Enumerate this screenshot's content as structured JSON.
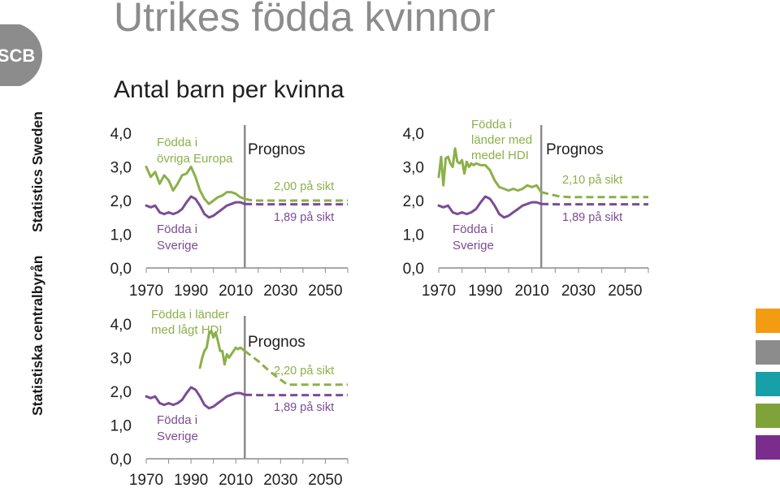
{
  "title": "Utrikes födda kvinnor",
  "subtitle": "Antal barn per kvinna",
  "organization": {
    "name_sv": "Statistiska centralbyrån",
    "name_en": "Statistics Sweden",
    "logo_text": "SCB"
  },
  "colors": {
    "green": "#8cb04a",
    "purple": "#7b4c95",
    "grey": "#8c8c8c",
    "swatches": [
      "#f39c12",
      "#8c8c8c",
      "#18a0a8",
      "#7fa33a",
      "#7b2d8e"
    ]
  },
  "chart_data": [
    {
      "id": "europa",
      "type": "line",
      "xlim": [
        1970,
        2060
      ],
      "ylim": [
        0,
        4
      ],
      "xticks": [
        "1970",
        "1990",
        "2010",
        "2030",
        "2050"
      ],
      "yticks": [
        "0,0",
        "1,0",
        "2,0",
        "3,0",
        "4,0"
      ],
      "forecast_start": 2014,
      "forecast_label": "Prognos",
      "series": [
        {
          "name": "Födda i övriga Europa",
          "color": "#8cb04a",
          "value_label": "2,00 på sikt",
          "x": [
            1970,
            1972,
            1974,
            1976,
            1978,
            1980,
            1982,
            1984,
            1986,
            1988,
            1990,
            1992,
            1994,
            1996,
            1998,
            2000,
            2002,
            2004,
            2006,
            2008,
            2010,
            2012,
            2014
          ],
          "y": [
            3.0,
            2.7,
            2.85,
            2.5,
            2.75,
            2.6,
            2.3,
            2.5,
            2.75,
            2.8,
            3.0,
            2.7,
            2.3,
            2.05,
            1.9,
            2.0,
            2.1,
            2.15,
            2.25,
            2.25,
            2.2,
            2.1,
            2.05
          ],
          "forecast_x": [
            2014,
            2016,
            2018,
            2020,
            2060
          ],
          "forecast_y": [
            2.05,
            2.02,
            2.0,
            2.0,
            2.0
          ]
        },
        {
          "name": "Födda i Sverige",
          "color": "#7b4c95",
          "value_label": "1,89 på sikt",
          "x": [
            1970,
            1972,
            1974,
            1976,
            1978,
            1980,
            1982,
            1984,
            1986,
            1988,
            1990,
            1992,
            1994,
            1996,
            1998,
            2000,
            2002,
            2004,
            2006,
            2008,
            2010,
            2012,
            2014
          ],
          "y": [
            1.85,
            1.8,
            1.85,
            1.65,
            1.6,
            1.65,
            1.6,
            1.65,
            1.75,
            1.95,
            2.12,
            2.05,
            1.85,
            1.6,
            1.5,
            1.55,
            1.65,
            1.75,
            1.85,
            1.9,
            1.95,
            1.95,
            1.9
          ],
          "forecast_x": [
            2014,
            2020,
            2060
          ],
          "forecast_y": [
            1.9,
            1.89,
            1.89
          ]
        }
      ],
      "annotations": [
        "Födda i",
        "övriga Europa",
        "Födda i",
        "Sverige"
      ]
    },
    {
      "id": "hogt",
      "type": "line",
      "xlim": [
        1970,
        2060
      ],
      "ylim": [
        0,
        4
      ],
      "xticks": [
        "1970",
        "1990",
        "2010",
        "2030",
        "2050"
      ],
      "yticks": [
        "0,0",
        "1,0",
        "2,0",
        "3,0",
        "4,0"
      ],
      "forecast_start": 2014,
      "forecast_label": "Prognos",
      "series": [
        {
          "name": "Födda i länder med medel HDI",
          "color": "#8cb04a",
          "value_label": "2,10 på sikt",
          "x": [
            1970,
            1971,
            1972,
            1973,
            1974,
            1975,
            1976,
            1977,
            1978,
            1979,
            1980,
            1981,
            1982,
            1983,
            1984,
            1985,
            1986,
            1988,
            1990,
            1992,
            1994,
            1996,
            1998,
            2000,
            2002,
            2004,
            2006,
            2008,
            2010,
            2012,
            2014
          ],
          "y": [
            2.7,
            3.3,
            2.45,
            3.25,
            3.3,
            3.1,
            3.0,
            3.55,
            3.15,
            3.1,
            3.2,
            2.8,
            3.15,
            3.0,
            3.1,
            3.05,
            3.1,
            3.05,
            3.05,
            2.9,
            2.6,
            2.4,
            2.35,
            2.3,
            2.35,
            2.3,
            2.35,
            2.45,
            2.4,
            2.45,
            2.25
          ],
          "forecast_x": [
            2014,
            2018,
            2022,
            2026,
            2060
          ],
          "forecast_y": [
            2.25,
            2.18,
            2.12,
            2.1,
            2.1
          ]
        },
        {
          "name": "Födda i Sverige",
          "color": "#7b4c95",
          "value_label": "1,89 på sikt",
          "x": [
            1970,
            1972,
            1974,
            1976,
            1978,
            1980,
            1982,
            1984,
            1986,
            1988,
            1990,
            1992,
            1994,
            1996,
            1998,
            2000,
            2002,
            2004,
            2006,
            2008,
            2010,
            2012,
            2014
          ],
          "y": [
            1.85,
            1.8,
            1.85,
            1.65,
            1.6,
            1.65,
            1.6,
            1.65,
            1.75,
            1.95,
            2.12,
            2.05,
            1.85,
            1.6,
            1.5,
            1.55,
            1.65,
            1.75,
            1.85,
            1.9,
            1.95,
            1.95,
            1.9
          ],
          "forecast_x": [
            2014,
            2020,
            2060
          ],
          "forecast_y": [
            1.9,
            1.89,
            1.89
          ]
        }
      ],
      "annotations": [
        "Födda i",
        "länder med",
        "medel HDI",
        "Födda i",
        "Sverige"
      ]
    },
    {
      "id": "lagt",
      "type": "line",
      "xlim": [
        1970,
        2060
      ],
      "ylim": [
        0,
        4
      ],
      "xticks": [
        "1970",
        "1990",
        "2010",
        "2030",
        "2050"
      ],
      "yticks": [
        "0,0",
        "1,0",
        "2,0",
        "3,0",
        "4,0"
      ],
      "forecast_start": 2014,
      "forecast_label": "Prognos",
      "series": [
        {
          "name": "Födda i länder med lågt HDI",
          "color": "#8cb04a",
          "value_label": "2,20 på sikt",
          "x": [
            1994,
            1995,
            1996,
            1997,
            1998,
            1999,
            2000,
            2001,
            2002,
            2003,
            2004,
            2005,
            2006,
            2007,
            2008,
            2009,
            2010,
            2011,
            2012,
            2013,
            2014
          ],
          "y": [
            2.7,
            3.0,
            3.2,
            3.3,
            3.7,
            3.8,
            3.6,
            3.75,
            3.5,
            3.2,
            3.2,
            2.8,
            3.1,
            3.0,
            3.1,
            3.2,
            3.3,
            3.25,
            3.3,
            3.25,
            3.2
          ],
          "forecast_x": [
            2014,
            2020,
            2025,
            2030,
            2033,
            2060
          ],
          "forecast_y": [
            3.2,
            2.9,
            2.6,
            2.35,
            2.2,
            2.2
          ]
        },
        {
          "name": "Födda i Sverige",
          "color": "#7b4c95",
          "value_label": "1,89 på sikt",
          "x": [
            1970,
            1972,
            1974,
            1976,
            1978,
            1980,
            1982,
            1984,
            1986,
            1988,
            1990,
            1992,
            1994,
            1996,
            1998,
            2000,
            2002,
            2004,
            2006,
            2008,
            2010,
            2012,
            2014
          ],
          "y": [
            1.85,
            1.8,
            1.85,
            1.65,
            1.6,
            1.65,
            1.6,
            1.65,
            1.75,
            1.95,
            2.12,
            2.05,
            1.85,
            1.6,
            1.5,
            1.55,
            1.65,
            1.75,
            1.85,
            1.9,
            1.95,
            1.95,
            1.9
          ],
          "forecast_x": [
            2014,
            2020,
            2060
          ],
          "forecast_y": [
            1.9,
            1.89,
            1.89
          ]
        }
      ],
      "annotations": [
        "Födda i länder",
        "med lågt HDI",
        "Födda i",
        "Sverige"
      ]
    }
  ]
}
